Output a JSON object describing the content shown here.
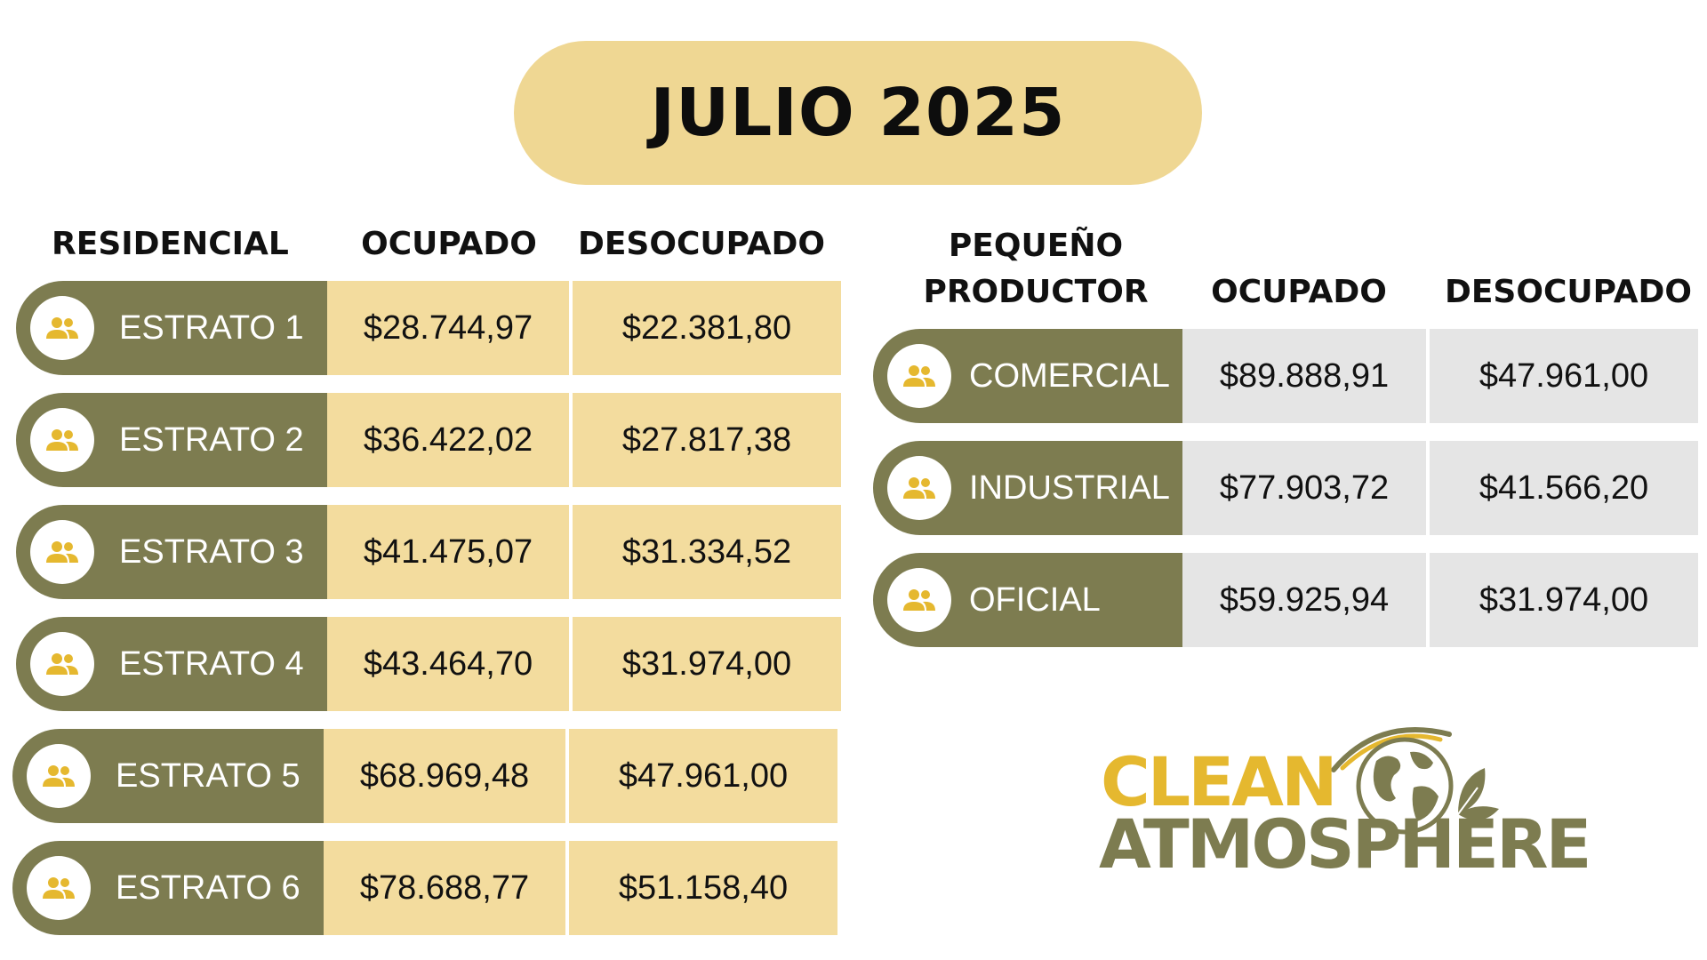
{
  "title": "JULIO 2025",
  "residencial": {
    "headers": {
      "category": "RESIDENCIAL",
      "ocupado": "OCUPADO",
      "desocupado": "DESOCUPADO"
    },
    "rows": [
      {
        "label": "ESTRATO 1",
        "ocupado": "$28.744,97",
        "desocupado": "$22.381,80"
      },
      {
        "label": "ESTRATO 2",
        "ocupado": "$36.422,02",
        "desocupado": "$27.817,38"
      },
      {
        "label": "ESTRATO 3",
        "ocupado": "$41.475,07",
        "desocupado": "$31.334,52"
      },
      {
        "label": "ESTRATO 4",
        "ocupado": "$43.464,70",
        "desocupado": "$31.974,00"
      },
      {
        "label": "ESTRATO 5",
        "ocupado": "$68.969,48",
        "desocupado": "$47.961,00"
      },
      {
        "label": "ESTRATO 6",
        "ocupado": "$78.688,77",
        "desocupado": "$51.158,40"
      }
    ]
  },
  "pequeno_productor": {
    "headers": {
      "category_line1": "PEQUEÑO",
      "category_line2": "PRODUCTOR",
      "ocupado": "OCUPADO",
      "desocupado": "DESOCUPADO"
    },
    "rows": [
      {
        "label": "COMERCIAL",
        "ocupado": "$89.888,91",
        "desocupado": "$47.961,00"
      },
      {
        "label": "INDUSTRIAL",
        "ocupado": "$77.903,72",
        "desocupado": "$41.566,20"
      },
      {
        "label": "OFICIAL",
        "ocupado": "$59.925,94",
        "desocupado": "$31.974,00"
      }
    ]
  },
  "logo": {
    "line1": "CLEAN",
    "line2": "ATMOSPHERE"
  },
  "icons": {
    "row_icon": "people-group-icon",
    "logo_icon": "globe-leaf-icon"
  },
  "colors": {
    "title_bg": "#efd793",
    "label_bg": "#7d7c50",
    "residential_cell_bg": "#f3dc9e",
    "productor_cell_bg": "#e5e5e5",
    "icon_color": "#e5b82f",
    "logo_clean": "#e5b82f",
    "logo_atmosphere": "#7d7c50"
  }
}
